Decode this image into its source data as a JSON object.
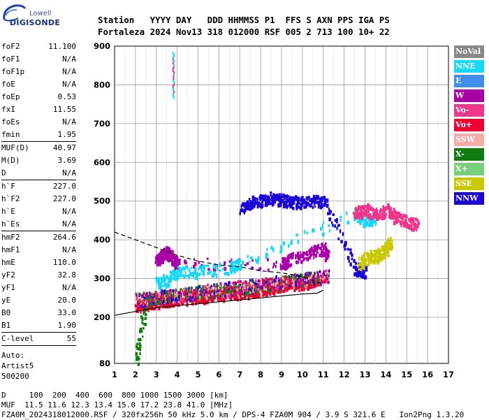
{
  "logo": {
    "line1": "Lowell",
    "line2": "DIGISONDE"
  },
  "header": {
    "labels": "Station   YYYY DAY   DDD HHMMSS P1  FFS S AXN PPS IGA PS",
    "values": "Fortaleza 2024 Nov13 318 012000 RSF 005 2 713 100 10+ 22"
  },
  "params": {
    "group1": [
      {
        "label": "foF2",
        "value": "11.100"
      },
      {
        "label": "foF1",
        "value": "N/A"
      },
      {
        "label": "foF1p",
        "value": "N/A"
      },
      {
        "label": "foE",
        "value": "N/A"
      },
      {
        "label": "foEp",
        "value": "0.53"
      },
      {
        "label": "fxI",
        "value": "11.55"
      },
      {
        "label": "foEs",
        "value": "N/A"
      },
      {
        "label": "fmin",
        "value": "1.95"
      }
    ],
    "group2": [
      {
        "label": "MUF(D)",
        "value": "40.97"
      },
      {
        "label": "M(D)",
        "value": "3.69"
      },
      {
        "label": "D",
        "value": "N/A"
      }
    ],
    "group3": [
      {
        "label": "h`F",
        "value": "227.0"
      },
      {
        "label": "h`F2",
        "value": "227.0"
      },
      {
        "label": "h`E",
        "value": "N/A"
      },
      {
        "label": "h`Es",
        "value": "N/A"
      }
    ],
    "group4": [
      {
        "label": "hmF2",
        "value": "264.6"
      },
      {
        "label": "hmF1",
        "value": "N/A"
      },
      {
        "label": "hmE",
        "value": "110.0"
      },
      {
        "label": "yF2",
        "value": "32.8"
      },
      {
        "label": "yF1",
        "value": "N/A"
      },
      {
        "label": "yE",
        "value": "20.0"
      },
      {
        "label": "B0",
        "value": "33.0"
      },
      {
        "label": "B1",
        "value": "1.90"
      }
    ],
    "clevel": {
      "label": "C-level",
      "value": "55"
    },
    "auto": [
      "Auto:",
      "Artist5",
      "500200"
    ]
  },
  "legend": [
    {
      "label": "NoVal",
      "color": "#888888"
    },
    {
      "label": "NNE",
      "color": "#19d7f7"
    },
    {
      "label": "E",
      "color": "#3f8ef0"
    },
    {
      "label": "W",
      "color": "#a600a6"
    },
    {
      "label": "Vo-",
      "color": "#f0358a"
    },
    {
      "label": "Vo+",
      "color": "#ee0033"
    },
    {
      "label": "SSW",
      "color": "#f7aaaa"
    },
    {
      "label": "X-",
      "color": "#117a11"
    },
    {
      "label": "X+",
      "color": "#7ad07a"
    },
    {
      "label": "SSE",
      "color": "#c8c800"
    },
    {
      "label": "NNW",
      "color": "#1b00d6"
    }
  ],
  "footer": {
    "line1": "D     100  200  400  600  800 1000 1500 3000 [km]",
    "line2": "MUF  11.5 11.6 12.3 13.4 15.0 17.2 23.8 41.0 [MHz]",
    "line3": "FZA0M_2024318012000.RSF / 320fx256h 50 kHz 5.0 km / DPS-4 FZA0M 904 / 3.9 S 321.6 E   Ion2Png 1.3.20"
  },
  "chart_data": {
    "type": "scatter",
    "x_ticks": [
      "1",
      "2",
      "3",
      "4",
      "5",
      "6",
      "7",
      "8",
      "9",
      "10",
      "11",
      "12",
      "13",
      "14",
      "15",
      "16",
      "17"
    ],
    "y_ticks": [
      "80",
      "200",
      "300",
      "400",
      "500",
      "600",
      "700",
      "800",
      "900"
    ],
    "xlim": [
      1,
      17
    ],
    "y_axis_values": [
      80,
      200,
      300,
      400,
      500,
      600,
      700,
      800,
      900
    ],
    "y_scale": "non-uniform (80 at bottom, then 100 km steps)",
    "grid": true,
    "series": [
      {
        "color_key": "Vo+",
        "description_points": [
          [
            2.0,
            230
          ],
          [
            2.5,
            235
          ],
          [
            3.0,
            240
          ],
          [
            3.5,
            245
          ],
          [
            4.0,
            250
          ],
          [
            4.5,
            252
          ],
          [
            5.0,
            255
          ],
          [
            5.5,
            258
          ],
          [
            6.0,
            260
          ],
          [
            6.5,
            262
          ],
          [
            7.0,
            265
          ],
          [
            7.5,
            270
          ],
          [
            8.0,
            275
          ],
          [
            8.5,
            280
          ],
          [
            9.0,
            285
          ],
          [
            9.5,
            290
          ],
          [
            10.0,
            290
          ],
          [
            10.5,
            295
          ],
          [
            11.0,
            300
          ]
        ]
      },
      {
        "color_key": "W",
        "description_points": [
          [
            3.0,
            350
          ],
          [
            3.2,
            360
          ],
          [
            3.5,
            370
          ],
          [
            3.7,
            355
          ],
          [
            4.0,
            340
          ],
          [
            9.0,
            340
          ],
          [
            9.3,
            350
          ],
          [
            10.3,
            370
          ],
          [
            11.0,
            380
          ],
          [
            11.2,
            360
          ]
        ]
      },
      {
        "color_key": "NNE",
        "description_points": [
          [
            3.0,
            290
          ],
          [
            3.5,
            300
          ],
          [
            4.0,
            320
          ],
          [
            5.0,
            320
          ],
          [
            6.5,
            330
          ],
          [
            7.0,
            340
          ],
          [
            12.5,
            470
          ],
          [
            13.0,
            450
          ],
          [
            13.5,
            460
          ]
        ]
      },
      {
        "color_key": "NNW",
        "description_points": [
          [
            7.0,
            480
          ],
          [
            7.5,
            500
          ],
          [
            8.0,
            505
          ],
          [
            8.5,
            510
          ],
          [
            9.0,
            505
          ],
          [
            9.5,
            500
          ],
          [
            10.3,
            500
          ],
          [
            11.0,
            505
          ],
          [
            12.5,
            330
          ],
          [
            13.0,
            320
          ]
        ]
      },
      {
        "color_key": "SSE",
        "description_points": [
          [
            12.7,
            340
          ],
          [
            13.2,
            360
          ],
          [
            13.6,
            360
          ],
          [
            14.0,
            380
          ],
          [
            14.2,
            400
          ]
        ]
      },
      {
        "color_key": "Vo-",
        "description_points": [
          [
            12.5,
            470
          ],
          [
            13.0,
            480
          ],
          [
            13.5,
            470
          ],
          [
            14.0,
            480
          ],
          [
            14.5,
            460
          ],
          [
            15.0,
            450
          ],
          [
            15.5,
            440
          ]
        ]
      },
      {
        "color_key": "X-",
        "description_points": [
          [
            2.0,
            85
          ],
          [
            2.5,
            250
          ],
          [
            3.0,
            255
          ],
          [
            4.0,
            260
          ],
          [
            6.0,
            270
          ],
          [
            8.0,
            280
          ],
          [
            11.0,
            310
          ]
        ]
      }
    ],
    "lines": [
      {
        "style": "dashed",
        "points": [
          [
            1,
            420
          ],
          [
            2,
            400
          ],
          [
            3,
            380
          ],
          [
            4,
            360
          ],
          [
            5,
            345
          ],
          [
            6,
            335
          ],
          [
            7,
            330
          ],
          [
            8,
            320
          ],
          [
            9,
            315
          ],
          [
            10,
            305
          ],
          [
            10.5,
            295
          ],
          [
            11,
            285
          ]
        ]
      },
      {
        "style": "solid",
        "points": [
          [
            1,
            205
          ],
          [
            2,
            215
          ],
          [
            3,
            225
          ],
          [
            4,
            230
          ],
          [
            5,
            235
          ],
          [
            6,
            240
          ],
          [
            7,
            245
          ],
          [
            8,
            250
          ],
          [
            9,
            255
          ],
          [
            10,
            260
          ],
          [
            10.7,
            262
          ],
          [
            11,
            270
          ]
        ]
      }
    ]
  }
}
